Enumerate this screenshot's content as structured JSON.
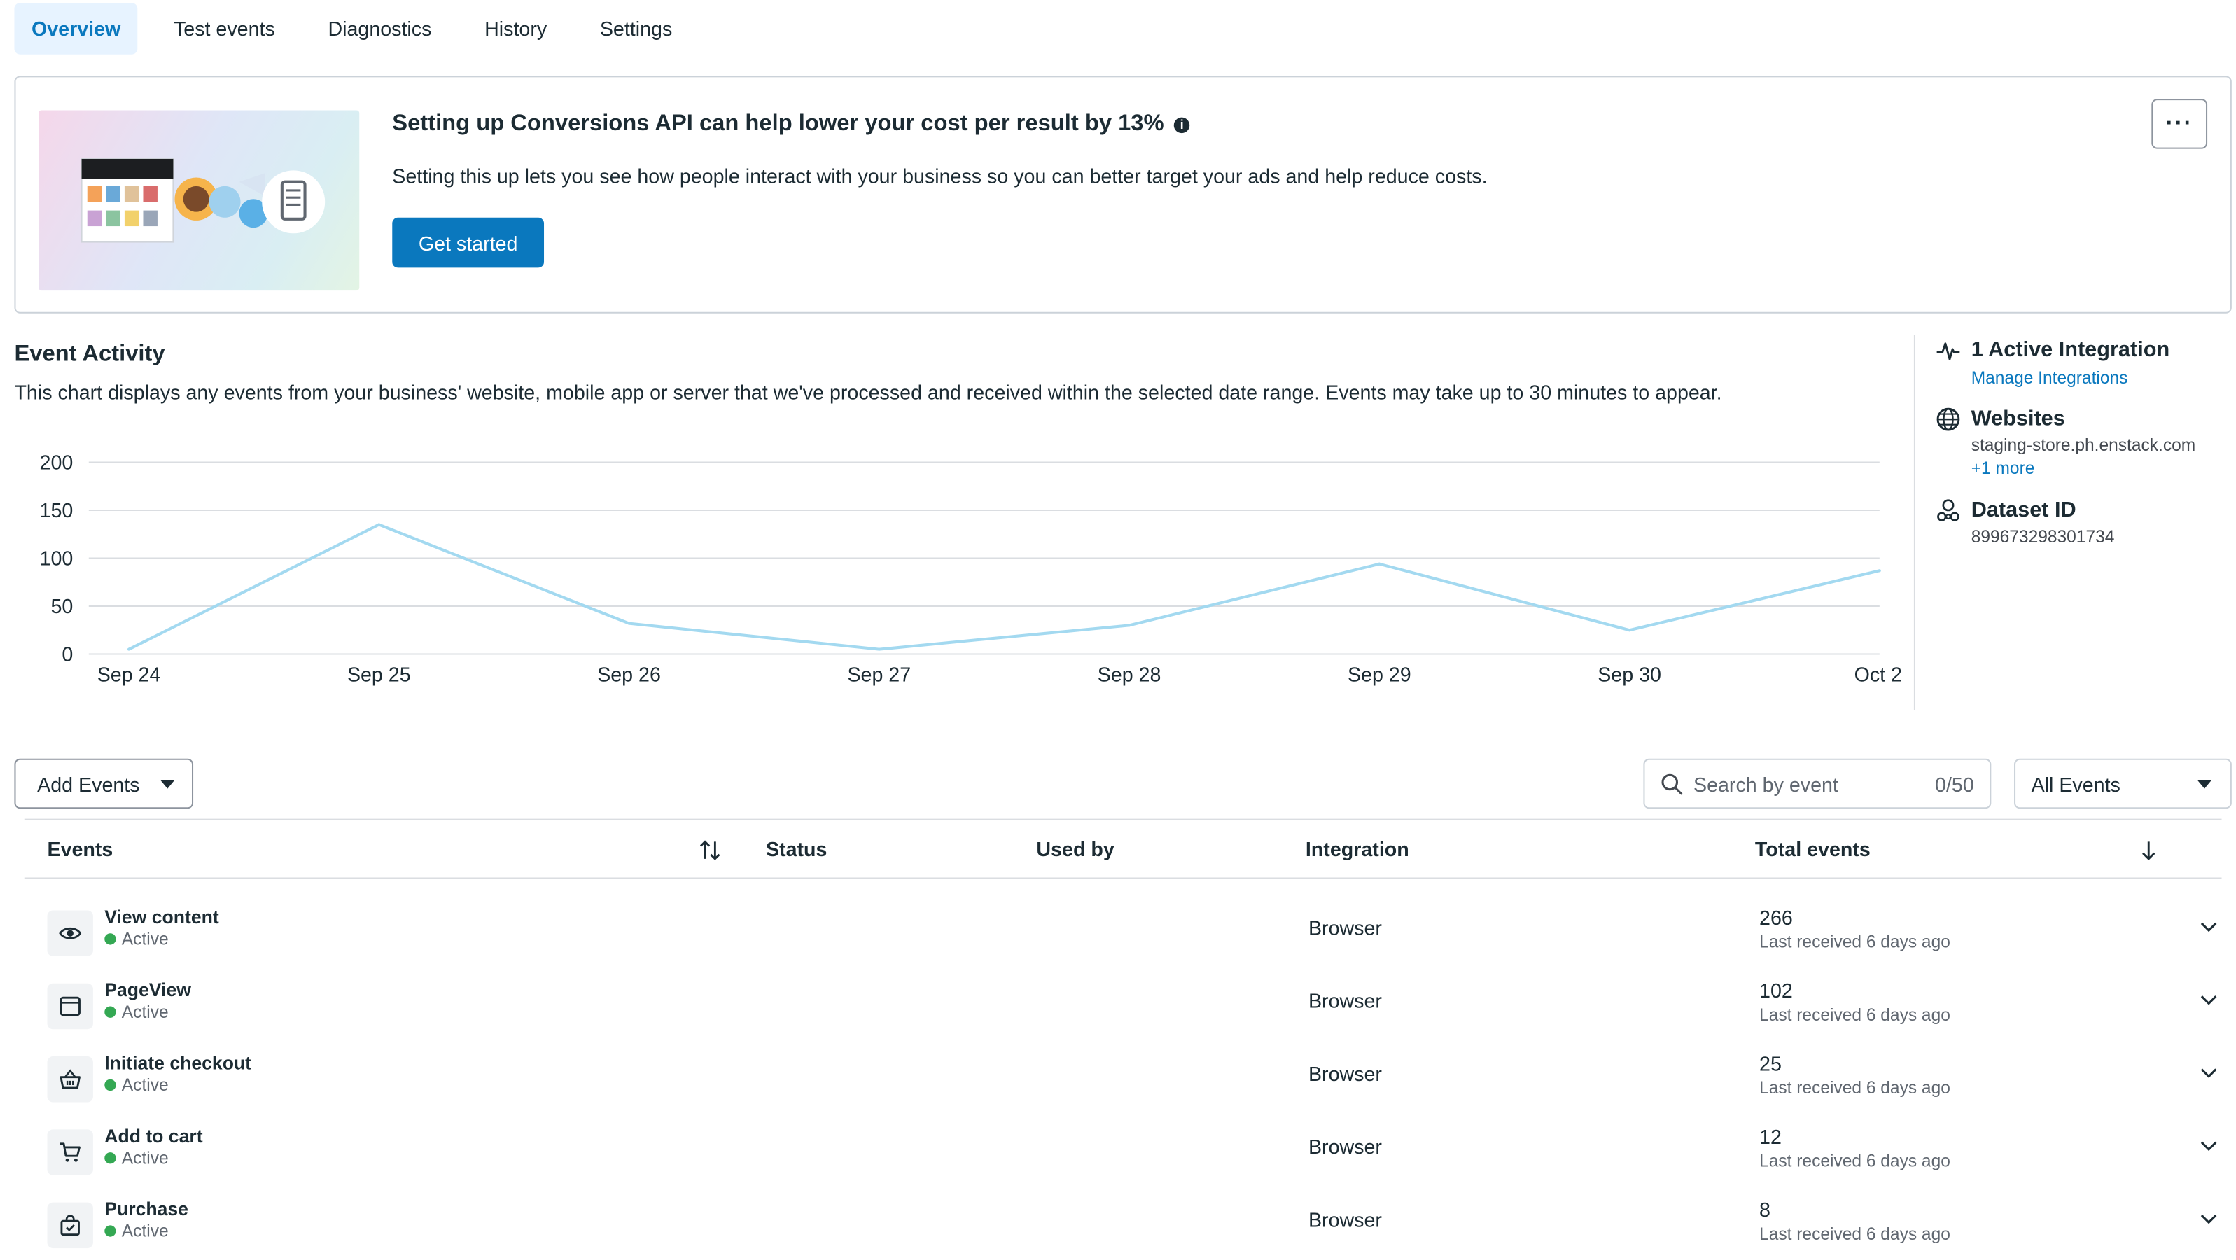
{
  "tabs": [
    {
      "label": "Overview",
      "active": true
    },
    {
      "label": "Test events",
      "active": false
    },
    {
      "label": "Diagnostics",
      "active": false
    },
    {
      "label": "History",
      "active": false
    },
    {
      "label": "Settings",
      "active": false
    }
  ],
  "banner": {
    "title": "Setting up Conversions API can help lower your cost per result by 13%",
    "info_icon": "i",
    "description": "Setting this up lets you see how people interact with your business so you can better target your ads and help reduce costs.",
    "cta_label": "Get started",
    "more_label": "···"
  },
  "event_activity": {
    "title": "Event Activity",
    "description": "This chart displays any events from your business' website, mobile app or server that we've processed and received within the selected date range. Events may take up to 30 minutes to appear."
  },
  "chart_data": {
    "type": "line",
    "title": "",
    "xlabel": "",
    "ylabel": "",
    "categories": [
      "Sep 24",
      "Sep 25",
      "Sep 26",
      "Sep 27",
      "Sep 28",
      "Sep 29",
      "Sep 30",
      "Oct 2"
    ],
    "values": [
      5,
      135,
      32,
      5,
      30,
      94,
      25,
      87
    ],
    "ylim": [
      0,
      200
    ],
    "y_ticks": [
      "0",
      "50",
      "100",
      "150",
      "200"
    ],
    "grid": true,
    "legend": "none",
    "line_color": "#a3d9f0"
  },
  "side_panel": {
    "integration_title": "1 Active Integration",
    "integration_link": "Manage Integrations",
    "websites_title": "Websites",
    "websites_value": "staging-store.ph.enstack.com",
    "websites_more": "+1 more",
    "dataset_title": "Dataset ID",
    "dataset_value": "899673298301734"
  },
  "controls": {
    "add_events_label": "Add Events",
    "search_placeholder": "Search by event",
    "search_count": "0/50",
    "filter_label": "All Events"
  },
  "table": {
    "headers": {
      "events": "Events",
      "status": "Status",
      "used_by": "Used by",
      "integration": "Integration",
      "total": "Total events"
    },
    "rows": [
      {
        "name": "View content",
        "status": "Active",
        "integration": "Browser",
        "total": "266",
        "last": "Last received 6 days ago",
        "icon": "eye-icon"
      },
      {
        "name": "PageView",
        "status": "Active",
        "integration": "Browser",
        "total": "102",
        "last": "Last received 6 days ago",
        "icon": "browser-window-icon"
      },
      {
        "name": "Initiate checkout",
        "status": "Active",
        "integration": "Browser",
        "total": "25",
        "last": "Last received 6 days ago",
        "icon": "basket-icon"
      },
      {
        "name": "Add to cart",
        "status": "Active",
        "integration": "Browser",
        "total": "12",
        "last": "Last received 6 days ago",
        "icon": "cart-icon"
      },
      {
        "name": "Purchase",
        "status": "Active",
        "integration": "Browser",
        "total": "8",
        "last": "Last received 6 days ago",
        "icon": "shopping-bag-icon"
      }
    ]
  },
  "colors": {
    "accent": "#0a78be",
    "active_tab_bg": "#e7f3ff",
    "status_active": "#34a853"
  }
}
